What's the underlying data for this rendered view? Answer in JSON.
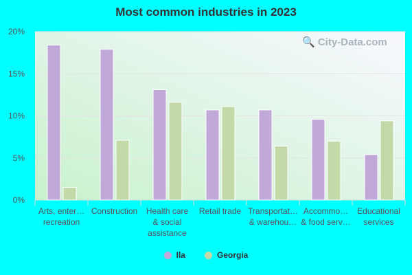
{
  "chart_data": {
    "type": "bar",
    "title": "Most common industries in 2023",
    "categories": [
      [
        "Arts, enter…",
        "recreation"
      ],
      [
        "Construction"
      ],
      [
        "Health care",
        "& social",
        "assistance"
      ],
      [
        "Retail trade"
      ],
      [
        "Transportat…",
        "& warehou…"
      ],
      [
        "Accommo…",
        "& food serv…"
      ],
      [
        "Educational",
        "services"
      ]
    ],
    "series": [
      {
        "name": "Ila",
        "color": "#c0a8d8",
        "values": [
          18.4,
          17.9,
          13.1,
          10.7,
          10.7,
          9.6,
          5.4
        ]
      },
      {
        "name": "Georgia",
        "color": "#c4d9a8",
        "values": [
          1.5,
          7.1,
          11.6,
          11.1,
          6.4,
          7.0,
          9.4
        ]
      }
    ],
    "ylim": [
      0,
      20
    ],
    "yticks": [
      "0%",
      "5%",
      "10%",
      "15%",
      "20%"
    ],
    "grid": true,
    "legend_placement": "bottom"
  },
  "watermark": "City-Data.com"
}
